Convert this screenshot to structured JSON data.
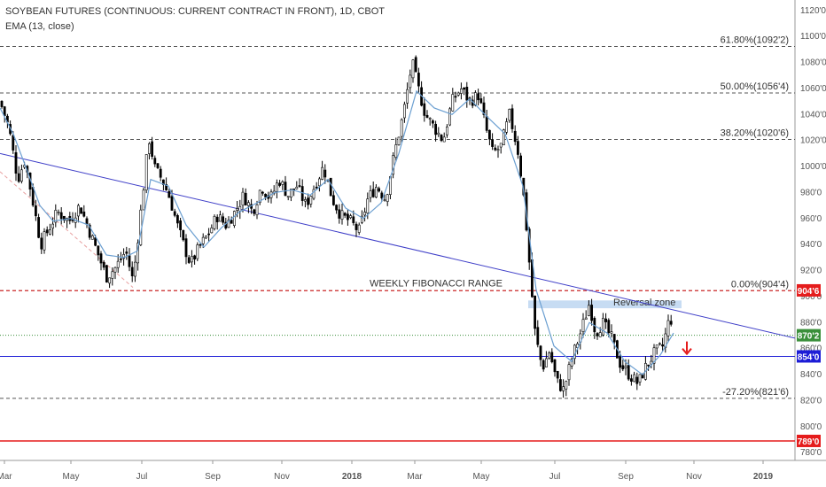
{
  "title": "SOYBEAN FUTURES (CONTINUOUS: CURRENT CONTRACT IN FRONT), 1D, CBOT",
  "indicator": "EMA (13, close)",
  "colors": {
    "up": "#ffffff",
    "down": "#000000",
    "ema": "#6b9fd1",
    "trendline": "#3f3fc8",
    "fib": "#555555",
    "red_line": "#e51c1c",
    "blue_line": "#1c1cd6",
    "green_line": "#3a8f3a",
    "zone": "#b9d3f0",
    "arrow": "#e51c1c"
  },
  "chart_data": {
    "type": "candlestick",
    "ylim": [
      774,
      1128
    ],
    "y_ticks": [
      "780'0",
      "800'0",
      "820'0",
      "840'0",
      "860'0",
      "880'0",
      "900'0",
      "920'0",
      "940'0",
      "960'0",
      "980'0",
      "1000'0",
      "1020'0",
      "1040'0",
      "1060'0",
      "1080'0",
      "1100'0",
      "1120'0"
    ],
    "x_ticks": [
      "Mar",
      "May",
      "Jul",
      "Sep",
      "Nov",
      "2018",
      "Mar",
      "May",
      "Jul",
      "Sep",
      "Nov",
      "2019"
    ],
    "bold_x_ticks": [
      "2018",
      "2019"
    ],
    "close_path": [
      [
        0,
        1050
      ],
      [
        10,
        1030
      ],
      [
        20,
        990
      ],
      [
        28,
        1005
      ],
      [
        38,
        970
      ],
      [
        46,
        940
      ],
      [
        55,
        952
      ],
      [
        65,
        965
      ],
      [
        78,
        958
      ],
      [
        90,
        970
      ],
      [
        100,
        952
      ],
      [
        112,
        930
      ],
      [
        120,
        915
      ],
      [
        130,
        922
      ],
      [
        142,
        935
      ],
      [
        150,
        912
      ],
      [
        158,
        960
      ],
      [
        168,
        1022
      ],
      [
        175,
        998
      ],
      [
        183,
        990
      ],
      [
        192,
        975
      ],
      [
        200,
        955
      ],
      [
        208,
        938
      ],
      [
        215,
        925
      ],
      [
        225,
        938
      ],
      [
        235,
        948
      ],
      [
        245,
        962
      ],
      [
        255,
        955
      ],
      [
        265,
        965
      ],
      [
        275,
        978
      ],
      [
        285,
        965
      ],
      [
        295,
        985
      ],
      [
        305,
        975
      ],
      [
        315,
        990
      ],
      [
        325,
        978
      ],
      [
        335,
        985
      ],
      [
        345,
        970
      ],
      [
        355,
        985
      ],
      [
        365,
        1000
      ],
      [
        375,
        975
      ],
      [
        385,
        962
      ],
      [
        395,
        958
      ],
      [
        405,
        950
      ],
      [
        415,
        975
      ],
      [
        425,
        985
      ],
      [
        435,
        975
      ],
      [
        445,
        1010
      ],
      [
        455,
        1040
      ],
      [
        465,
        1080
      ],
      [
        472,
        1060
      ],
      [
        480,
        1040
      ],
      [
        490,
        1030
      ],
      [
        500,
        1020
      ],
      [
        510,
        1050
      ],
      [
        520,
        1060
      ],
      [
        530,
        1050
      ],
      [
        540,
        1055
      ],
      [
        548,
        1030
      ],
      [
        556,
        1010
      ],
      [
        565,
        1015
      ],
      [
        575,
        1040
      ],
      [
        585,
        1010
      ],
      [
        592,
        970
      ],
      [
        598,
        920
      ],
      [
        604,
        870
      ],
      [
        612,
        845
      ],
      [
        620,
        858
      ],
      [
        628,
        835
      ],
      [
        636,
        828
      ],
      [
        645,
        852
      ],
      [
        655,
        872
      ],
      [
        665,
        895
      ],
      [
        672,
        872
      ],
      [
        680,
        880
      ],
      [
        690,
        868
      ],
      [
        700,
        848
      ],
      [
        710,
        840
      ],
      [
        720,
        833
      ],
      [
        728,
        845
      ],
      [
        738,
        856
      ],
      [
        748,
        862
      ],
      [
        756,
        885
      ],
      [
        760,
        876
      ]
    ],
    "ema_path": [
      [
        0,
        1045
      ],
      [
        15,
        1025
      ],
      [
        30,
        998
      ],
      [
        45,
        970
      ],
      [
        60,
        958
      ],
      [
        80,
        960
      ],
      [
        100,
        955
      ],
      [
        120,
        932
      ],
      [
        140,
        930
      ],
      [
        155,
        935
      ],
      [
        170,
        990
      ],
      [
        190,
        985
      ],
      [
        210,
        955
      ],
      [
        230,
        938
      ],
      [
        250,
        953
      ],
      [
        270,
        965
      ],
      [
        290,
        972
      ],
      [
        310,
        980
      ],
      [
        330,
        982
      ],
      [
        350,
        978
      ],
      [
        370,
        990
      ],
      [
        390,
        968
      ],
      [
        410,
        960
      ],
      [
        430,
        972
      ],
      [
        450,
        1010
      ],
      [
        470,
        1058
      ],
      [
        490,
        1045
      ],
      [
        510,
        1040
      ],
      [
        530,
        1052
      ],
      [
        550,
        1038
      ],
      [
        570,
        1025
      ],
      [
        590,
        985
      ],
      [
        605,
        905
      ],
      [
        625,
        862
      ],
      [
        645,
        850
      ],
      [
        665,
        880
      ],
      [
        685,
        872
      ],
      [
        705,
        850
      ],
      [
        725,
        840
      ],
      [
        745,
        855
      ],
      [
        760,
        872
      ]
    ],
    "fib_levels": [
      {
        "label": "61.80%(1092'2)",
        "value": 1092.25
      },
      {
        "label": "50.00%(1056'4)",
        "value": 1056.5
      },
      {
        "label": "38.20%(1020'6)",
        "value": 1020.75
      },
      {
        "label": "0.00%(904'4)",
        "value": 904.5
      },
      {
        "label": "-27.20%(821'6)",
        "value": 821.75
      }
    ],
    "price_tags": [
      {
        "label": "904'6",
        "value": 904.75
      },
      {
        "label": "870'2",
        "value": 870.25
      },
      {
        "label": "854'0",
        "value": 854
      },
      {
        "label": "789'0",
        "value": 789
      }
    ],
    "annotations": {
      "fib_range": "WEEKLY FIBONACCI RANGE",
      "zone": "Reversal zone"
    }
  }
}
